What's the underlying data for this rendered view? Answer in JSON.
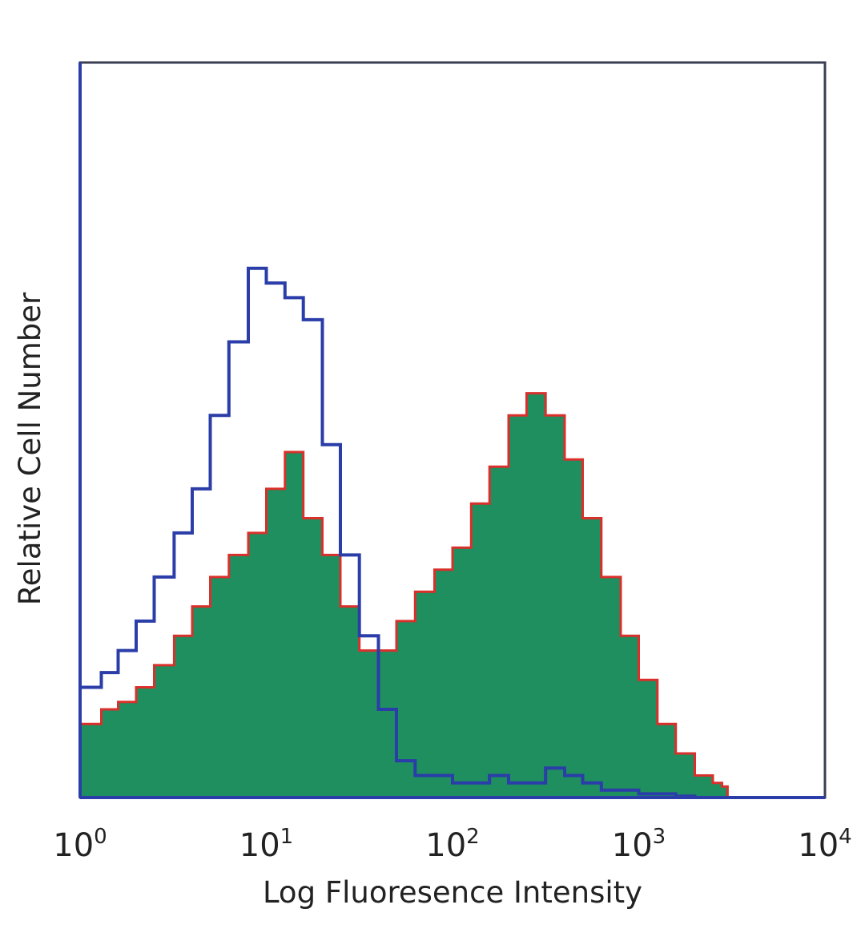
{
  "chart_data": {
    "type": "area",
    "title": "",
    "xlabel": "Log Fluoresence Intensity",
    "ylabel": "Relative Cell Number",
    "x_scale": "log",
    "xlim": [
      1,
      10000
    ],
    "ylim": [
      0,
      1
    ],
    "grid": false,
    "legend": "none",
    "x_ticks": [
      {
        "base": "10",
        "exp": "0",
        "value": 1
      },
      {
        "base": "10",
        "exp": "1",
        "value": 10
      },
      {
        "base": "10",
        "exp": "2",
        "value": 100
      },
      {
        "base": "10",
        "exp": "3",
        "value": 1000
      },
      {
        "base": "10",
        "exp": "4",
        "value": 10000
      }
    ],
    "series": [
      {
        "color": "#1f8f5f",
        "outline_color": "#d9302b",
        "style": "filled",
        "x": [
          1,
          1.3,
          1.6,
          2,
          2.5,
          3.2,
          4,
          5,
          6.3,
          8,
          10,
          12.6,
          15.8,
          20,
          25,
          31.6,
          40,
          50,
          63,
          80,
          100,
          126,
          158,
          200,
          250,
          316,
          400,
          500,
          630,
          800,
          1000,
          1260,
          1580,
          2000,
          2500,
          2800,
          3000
        ],
        "y": [
          0.1,
          0.12,
          0.13,
          0.15,
          0.18,
          0.22,
          0.26,
          0.3,
          0.33,
          0.36,
          0.42,
          0.47,
          0.38,
          0.33,
          0.26,
          0.2,
          0.2,
          0.24,
          0.28,
          0.31,
          0.34,
          0.4,
          0.45,
          0.52,
          0.55,
          0.52,
          0.46,
          0.38,
          0.3,
          0.22,
          0.16,
          0.1,
          0.06,
          0.03,
          0.02,
          0.015,
          0
        ]
      },
      {
        "color": "#2a3da8",
        "style": "line",
        "x": [
          1,
          1.3,
          1.6,
          2,
          2.5,
          3.2,
          4,
          5,
          6.3,
          8,
          10,
          12.6,
          15.8,
          20,
          25,
          31.6,
          40,
          50,
          63,
          80,
          100,
          126,
          158,
          200,
          250,
          316,
          400,
          500,
          630,
          800,
          1000,
          1260,
          1580,
          2000
        ],
        "y": [
          0.15,
          0.17,
          0.2,
          0.24,
          0.3,
          0.36,
          0.42,
          0.52,
          0.62,
          0.72,
          0.7,
          0.68,
          0.65,
          0.48,
          0.33,
          0.22,
          0.12,
          0.05,
          0.03,
          0.03,
          0.02,
          0.02,
          0.03,
          0.02,
          0.02,
          0.04,
          0.03,
          0.02,
          0.01,
          0.01,
          0.005,
          0.005,
          0.002,
          0
        ]
      }
    ]
  }
}
